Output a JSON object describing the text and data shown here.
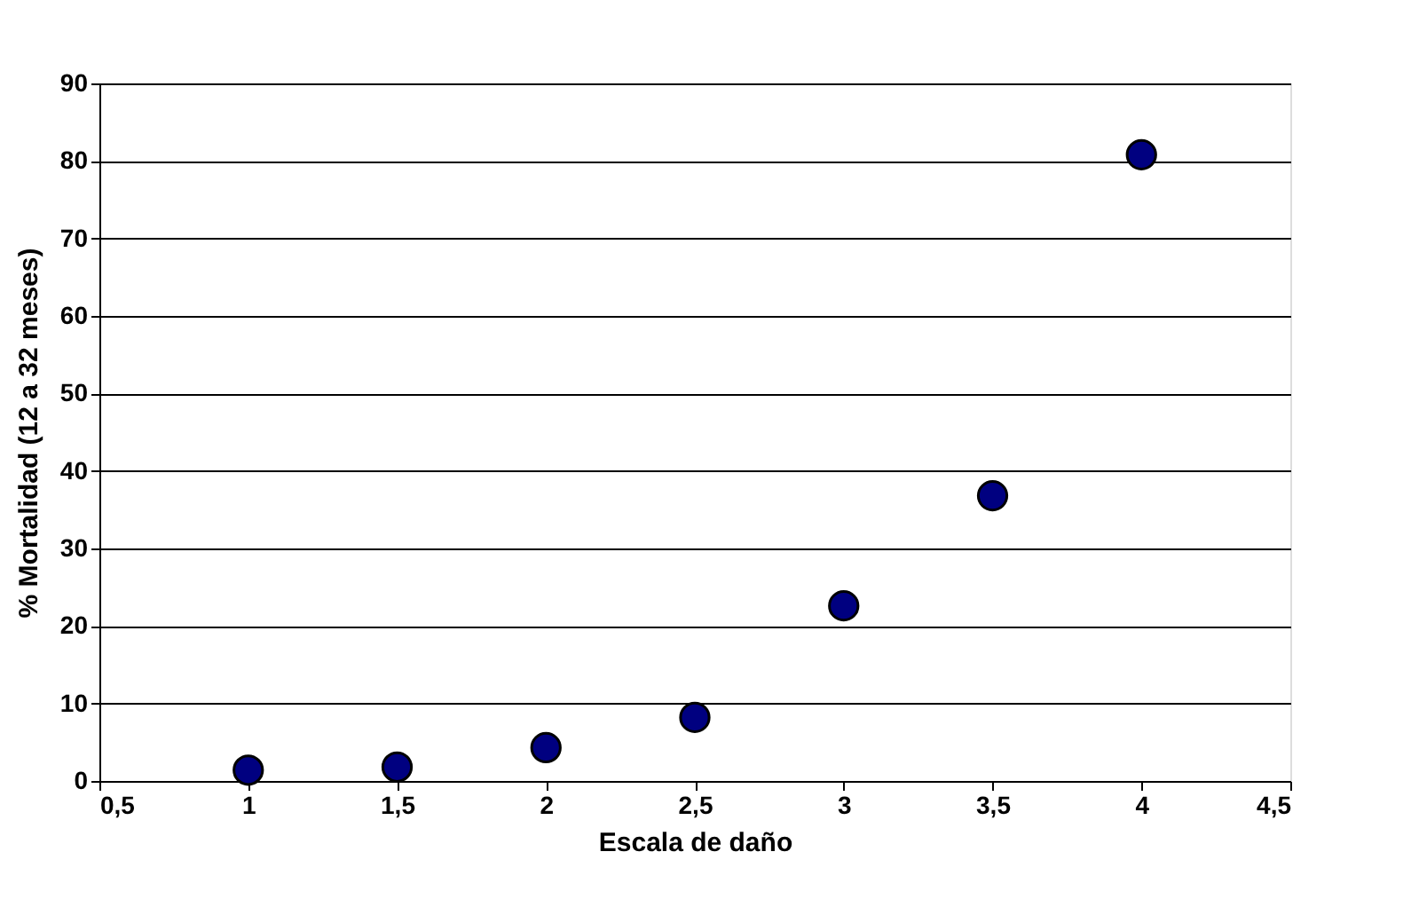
{
  "chart_data": {
    "type": "scatter",
    "xlabel": "Escala de daño",
    "ylabel": "% Mortalidad (12 a 32 meses)",
    "x": [
      1,
      1.5,
      2,
      2.5,
      3,
      3.5,
      4
    ],
    "series": [
      {
        "color": "#000080",
        "values": [
          1.4,
          1.8,
          4.3,
          8.2,
          22.6,
          36.8,
          80.8
        ]
      }
    ],
    "xlim": [
      0.5,
      4.5
    ],
    "xticks": [
      {
        "value": 0.5,
        "label": "0,5"
      },
      1,
      {
        "value": 1.5,
        "label": "1,5"
      },
      2,
      {
        "value": 2.5,
        "label": "2,5"
      },
      3,
      {
        "value": 3.5,
        "label": "3,5"
      },
      4,
      {
        "value": 4.5,
        "label": "4,5"
      }
    ],
    "ylim": [
      0,
      90
    ],
    "yticks": [
      0,
      10,
      20,
      30,
      40,
      50,
      60,
      70,
      80,
      90
    ],
    "grid": "y",
    "marker": "circle"
  }
}
